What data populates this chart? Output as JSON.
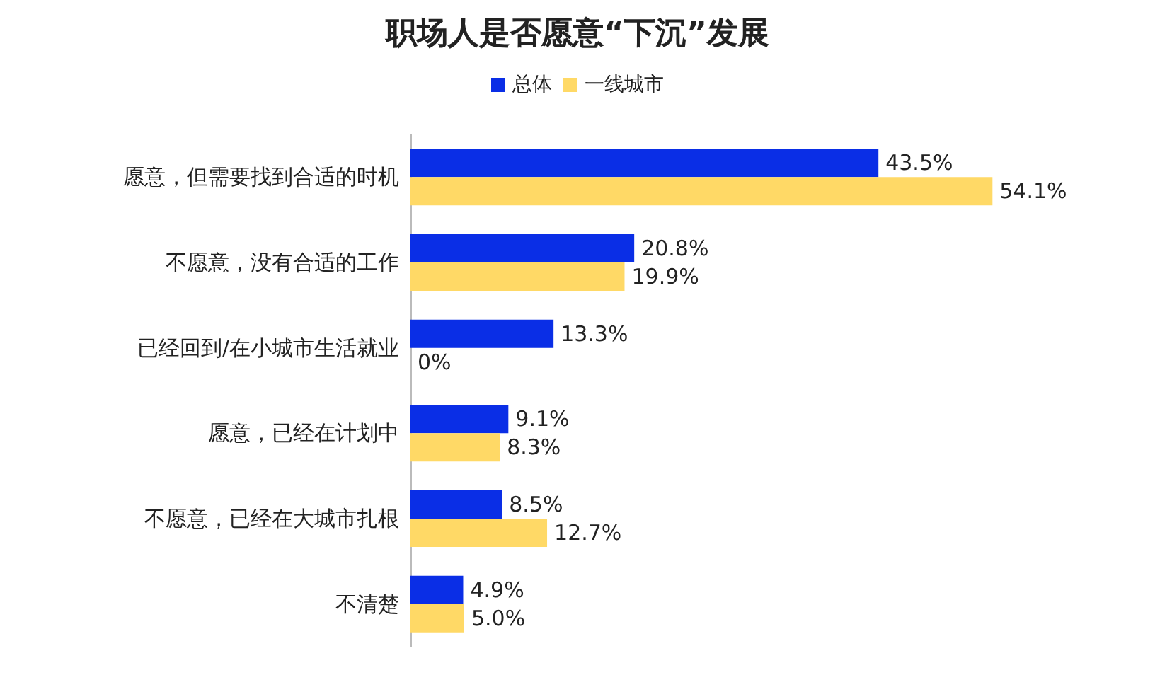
{
  "chart_data": {
    "type": "bar",
    "orientation": "horizontal",
    "title": "职场人是否愿意“下沉”发展",
    "categories": [
      "愿意，但需要找到合适的时机",
      "不愿意，没有合适的工作",
      "已经回到/在小城市生活就业",
      "愿意，已经在计划中",
      "不愿意，已经在大城市扎根",
      "不清楚"
    ],
    "series": [
      {
        "name": "总体",
        "color": "#0a2ee6",
        "values": [
          43.5,
          20.8,
          13.3,
          9.1,
          8.5,
          4.9
        ],
        "value_labels": [
          "43.5%",
          "20.8%",
          "13.3%",
          "9.1%",
          "8.5%",
          "4.9%"
        ]
      },
      {
        "name": "一线城市",
        "color": "#ffd966",
        "values": [
          54.1,
          19.9,
          0,
          8.3,
          12.7,
          5.0
        ],
        "value_labels": [
          "54.1%",
          "19.9%",
          "0%",
          "8.3%",
          "12.7%",
          "5.0%"
        ]
      }
    ],
    "legend": "top"
  }
}
